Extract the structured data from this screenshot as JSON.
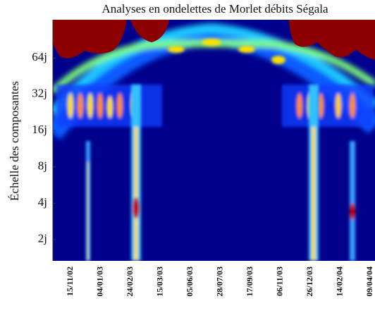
{
  "chart_data": {
    "type": "heatmap",
    "title": "Analyses en ondelettes de Morlet débits Ségala",
    "y_label": "Échelle des composantes",
    "categories": [
      "15/11/02",
      "04/01/03",
      "24/02/03",
      "15/03/03",
      "05/06/03",
      "28/07/03",
      "17/09/03",
      "06/11/03",
      "26/12/03",
      "14/02/04",
      "09/04/04"
    ],
    "ylog": true,
    "ylim": [
      1.33,
      133
    ],
    "yticks": [
      {
        "value": 2,
        "label": "2j"
      },
      {
        "value": 4,
        "label": "4j"
      },
      {
        "value": 8,
        "label": "8j"
      },
      {
        "value": 16,
        "label": "16j"
      },
      {
        "value": 32,
        "label": "32j"
      },
      {
        "value": 64,
        "label": "64j"
      }
    ]
  }
}
